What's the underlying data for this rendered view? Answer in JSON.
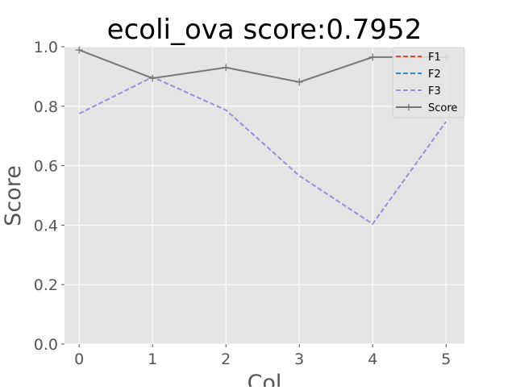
{
  "chart_data": {
    "type": "line",
    "title": "ecoli_ova score:0.7952",
    "xlabel": "Col",
    "ylabel": "Score",
    "x": [
      0,
      1,
      2,
      3,
      4,
      5
    ],
    "xlim": [
      -0.2,
      5.25
    ],
    "ylim": [
      0.0,
      1.0
    ],
    "xticks": [
      "0",
      "1",
      "2",
      "3",
      "4",
      "5"
    ],
    "yticks": [
      "0.0",
      "0.2",
      "0.4",
      "0.6",
      "0.8",
      "1.0"
    ],
    "grid": true,
    "legend_position": "top-right",
    "series": [
      {
        "name": "F1",
        "values": [
          null,
          null,
          null,
          null,
          null,
          null
        ],
        "color": "#e24a33",
        "style": "dashed",
        "marker": "none"
      },
      {
        "name": "F2",
        "values": [
          null,
          null,
          null,
          null,
          null,
          null
        ],
        "color": "#348abd",
        "style": "dashed",
        "marker": "none"
      },
      {
        "name": "F3",
        "values": [
          0.775,
          0.898,
          0.787,
          0.566,
          0.404,
          0.748
        ],
        "color": "#988ed5",
        "style": "dashed",
        "marker": "none"
      },
      {
        "name": "Score",
        "values": [
          0.989,
          0.894,
          0.93,
          0.881,
          0.965,
          0.965
        ],
        "color": "#777777",
        "style": "solid",
        "marker": "plus"
      }
    ]
  }
}
